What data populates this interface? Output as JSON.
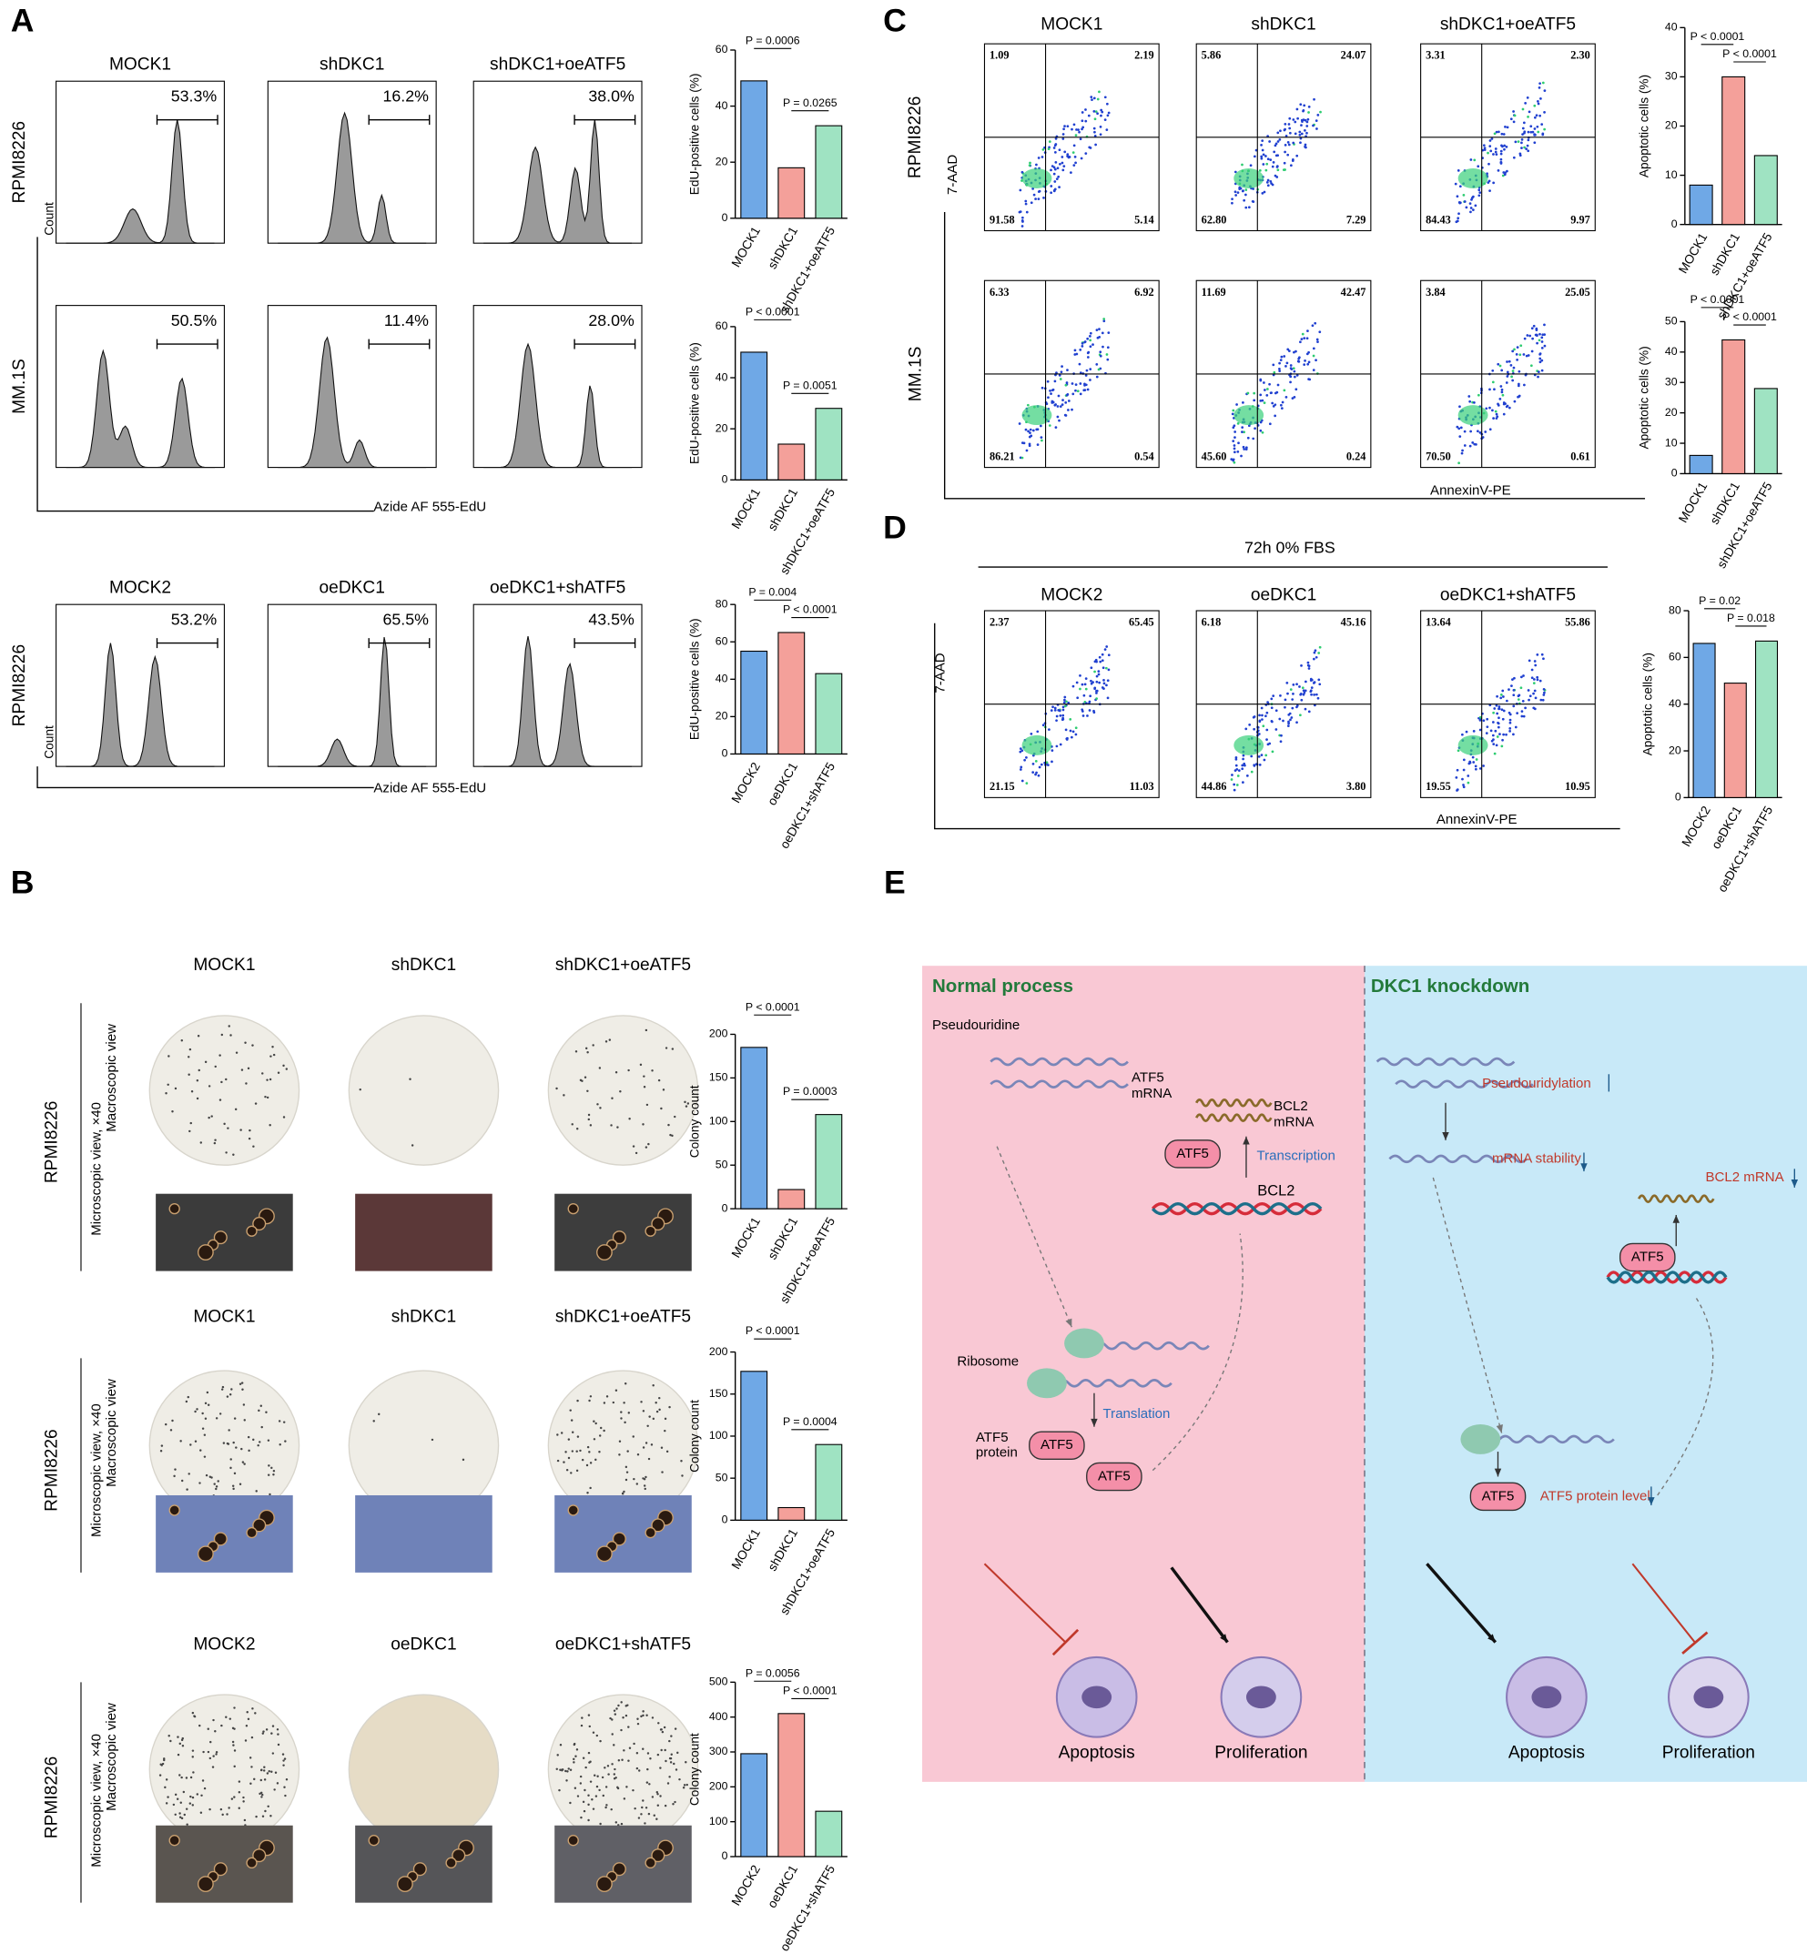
{
  "panel_A": {
    "label": "A",
    "rows": [
      {
        "columns": [
          "MOCK1",
          "shDKC1",
          "shDKC1+oeATF5"
        ],
        "row_label": "RPMI8226",
        "y_axis_label": "Count",
        "percentages": [
          "53.3%",
          "16.2%",
          "38.0%"
        ]
      },
      {
        "row_label": "MM.1S",
        "percentages": [
          "50.5%",
          "11.4%",
          "28.0%"
        ],
        "x_axis_label": "Azide AF 555-EdU"
      },
      {
        "columns": [
          "MOCK2",
          "oeDKC1",
          "oeDKC1+shATF5"
        ],
        "row_label": "RPMI8226",
        "y_axis_label": "Count",
        "percentages": [
          "53.2%",
          "65.5%",
          "43.5%"
        ],
        "x_axis_label": "Azide AF 555-EdU"
      }
    ]
  },
  "panel_B": {
    "label": "B",
    "rows": [
      {
        "columns": [
          "MOCK1",
          "shDKC1",
          "shDKC1+oeATF5"
        ],
        "row_label": "RPMI8226",
        "macro_label": "Macroscopic view",
        "micro_label": "Microscopic view, ×40"
      },
      {
        "columns": [
          "MOCK1",
          "shDKC1",
          "shDKC1+oeATF5"
        ],
        "row_label": "RPMI8226",
        "macro_label": "Macroscopic view",
        "micro_label": "Microscopic view, ×40"
      },
      {
        "columns": [
          "MOCK2",
          "oeDKC1",
          "oeDKC1+shATF5"
        ],
        "row_label": "RPMI8226",
        "macro_label": "Macroscopic view",
        "micro_label": "Microscopic view, ×40"
      }
    ]
  },
  "panel_C": {
    "label": "C",
    "columns": [
      "MOCK1",
      "shDKC1",
      "shDKC1+oeATF5"
    ],
    "y_axis_label": "7-AAD",
    "x_axis_label": "AnnexinV-PE",
    "rows": [
      {
        "row_label": "RPMI8226",
        "quadrants": [
          [
            "1.09",
            "2.19",
            "91.58",
            "5.14"
          ],
          [
            "5.86",
            "24.07",
            "62.80",
            "7.29"
          ],
          [
            "3.31",
            "2.30",
            "84.43",
            "9.97"
          ]
        ]
      },
      {
        "row_label": "MM.1S",
        "quadrants": [
          [
            "6.33",
            "6.92",
            "86.21",
            "0.54"
          ],
          [
            "11.69",
            "42.47",
            "45.60",
            "0.24"
          ],
          [
            "3.84",
            "25.05",
            "70.50",
            "0.61"
          ]
        ]
      }
    ]
  },
  "panel_D": {
    "label": "D",
    "condition": "72h   0% FBS",
    "columns": [
      "MOCK2",
      "oeDKC1",
      "oeDKC1+shATF5"
    ],
    "y_axis_label": "7-AAD",
    "x_axis_label": "AnnexinV-PE",
    "quadrants": [
      [
        "2.37",
        "65.45",
        "21.15",
        "11.03"
      ],
      [
        "6.18",
        "45.16",
        "44.86",
        "3.80"
      ],
      [
        "13.64",
        "55.86",
        "19.55",
        "10.95"
      ]
    ]
  },
  "panel_E": {
    "label": "E",
    "normal": {
      "title": "Normal process",
      "pseudouridine": "Pseudouridine",
      "atf5_mrna": [
        "ATF5",
        "mRNA"
      ],
      "bcl2_mrna": [
        "BCL2",
        "mRNA"
      ],
      "transcription": "Transcription",
      "atf5_dna": "ATF5",
      "bcl2": "BCL2",
      "ribosome": "Ribosome",
      "translation": "Translation",
      "atf5_protein": [
        "ATF5",
        "protein"
      ],
      "atf5_a": "ATF5",
      "atf5_b": "ATF5",
      "apoptosis": "Apoptosis",
      "proliferation": "Proliferation"
    },
    "knockdown": {
      "title": "DKC1 knockdown",
      "pseudouridylation": "Pseudouridylation",
      "mrna_stability": "mRNA stability",
      "bcl2_mrna": "BCL2 mRNA",
      "atf5_dna": "ATF5",
      "atf5_protein": "ATF5",
      "protein_level": "ATF5 protein level",
      "apoptosis": "Apoptosis",
      "proliferation": "Proliferation"
    }
  },
  "chart_data": [
    {
      "type": "bar",
      "y_label": "EdU-positive cells (%)",
      "categories": [
        "MOCK1",
        "shDKC1",
        "shDKC1+oeATF5"
      ],
      "values": [
        49,
        18,
        33
      ],
      "colors": [
        "#6fa8e6",
        "#f4a09a",
        "#9fe3c2"
      ],
      "ylim": [
        0,
        60
      ],
      "yticks": [
        0,
        20,
        40,
        60
      ],
      "annotations": [
        "P = 0.0006",
        "P = 0.0265"
      ]
    },
    {
      "type": "bar",
      "y_label": "EdU-positive cells (%)",
      "categories": [
        "MOCK1",
        "shDKC1",
        "shDKC1+oeATF5"
      ],
      "values": [
        50,
        14,
        28
      ],
      "colors": [
        "#6fa8e6",
        "#f4a09a",
        "#9fe3c2"
      ],
      "ylim": [
        0,
        60
      ],
      "yticks": [
        0,
        20,
        40,
        60
      ],
      "annotations": [
        "P < 0.0001",
        "P = 0.0051"
      ]
    },
    {
      "type": "bar",
      "y_label": "EdU-positive cells (%)",
      "categories": [
        "MOCK2",
        "oeDKC1",
        "oeDKC1+shATF5"
      ],
      "values": [
        55,
        65,
        43
      ],
      "colors": [
        "#6fa8e6",
        "#f4a09a",
        "#9fe3c2"
      ],
      "ylim": [
        0,
        80
      ],
      "yticks": [
        0,
        20,
        40,
        60,
        80
      ],
      "annotations": [
        "P = 0.004",
        "P < 0.0001"
      ]
    },
    {
      "type": "bar",
      "y_label": "Colony count",
      "categories": [
        "MOCK1",
        "shDKC1",
        "shDKC1+oeATF5"
      ],
      "values": [
        185,
        22,
        108
      ],
      "colors": [
        "#6fa8e6",
        "#f4a09a",
        "#9fe3c2"
      ],
      "ylim": [
        0,
        200
      ],
      "yticks": [
        0,
        50,
        100,
        150,
        200
      ],
      "annotations": [
        "P < 0.0001",
        "P = 0.0003"
      ]
    },
    {
      "type": "bar",
      "y_label": "Colony count",
      "categories": [
        "MOCK1",
        "shDKC1",
        "shDKC1+oeATF5"
      ],
      "values": [
        177,
        15,
        90
      ],
      "colors": [
        "#6fa8e6",
        "#f4a09a",
        "#9fe3c2"
      ],
      "ylim": [
        0,
        200
      ],
      "yticks": [
        0,
        50,
        100,
        150,
        200
      ],
      "annotations": [
        "P < 0.0001",
        "P = 0.0004"
      ]
    },
    {
      "type": "bar",
      "y_label": "Colony count",
      "categories": [
        "MOCK2",
        "oeDKC1",
        "oeDKC1+shATF5"
      ],
      "values": [
        295,
        410,
        130
      ],
      "colors": [
        "#6fa8e6",
        "#f4a09a",
        "#9fe3c2"
      ],
      "ylim": [
        0,
        500
      ],
      "yticks": [
        0,
        100,
        200,
        300,
        400,
        500
      ],
      "annotations": [
        "P = 0.0056",
        "P < 0.0001"
      ]
    },
    {
      "type": "bar",
      "y_label": "Apoptotic cells (%)",
      "categories": [
        "MOCK1",
        "shDKC1",
        "shDKC1+oeATF5"
      ],
      "values": [
        8,
        30,
        14
      ],
      "colors": [
        "#6fa8e6",
        "#f4a09a",
        "#9fe3c2"
      ],
      "ylim": [
        0,
        40
      ],
      "yticks": [
        0,
        10,
        20,
        30,
        40
      ],
      "annotations": [
        "P < 0.0001",
        "P < 0.0001"
      ]
    },
    {
      "type": "bar",
      "y_label": "Apoptotic cells (%)",
      "categories": [
        "MOCK1",
        "shDKC1",
        "shDKC1+oeATF5"
      ],
      "values": [
        6,
        44,
        28
      ],
      "colors": [
        "#6fa8e6",
        "#f4a09a",
        "#9fe3c2"
      ],
      "ylim": [
        0,
        50
      ],
      "yticks": [
        0,
        10,
        20,
        30,
        40,
        50
      ],
      "annotations": [
        "P < 0.0001",
        "P < 0.0001"
      ]
    },
    {
      "type": "bar",
      "y_label": "Apoptotic cells (%)",
      "categories": [
        "MOCK2",
        "oeDKC1",
        "oeDKC1+shATF5"
      ],
      "values": [
        66,
        49,
        67
      ],
      "colors": [
        "#6fa8e6",
        "#f4a09a",
        "#9fe3c2"
      ],
      "ylim": [
        0,
        80
      ],
      "yticks": [
        0,
        20,
        40,
        60,
        80
      ],
      "annotations": [
        "P = 0.02",
        "P = 0.018"
      ]
    }
  ]
}
